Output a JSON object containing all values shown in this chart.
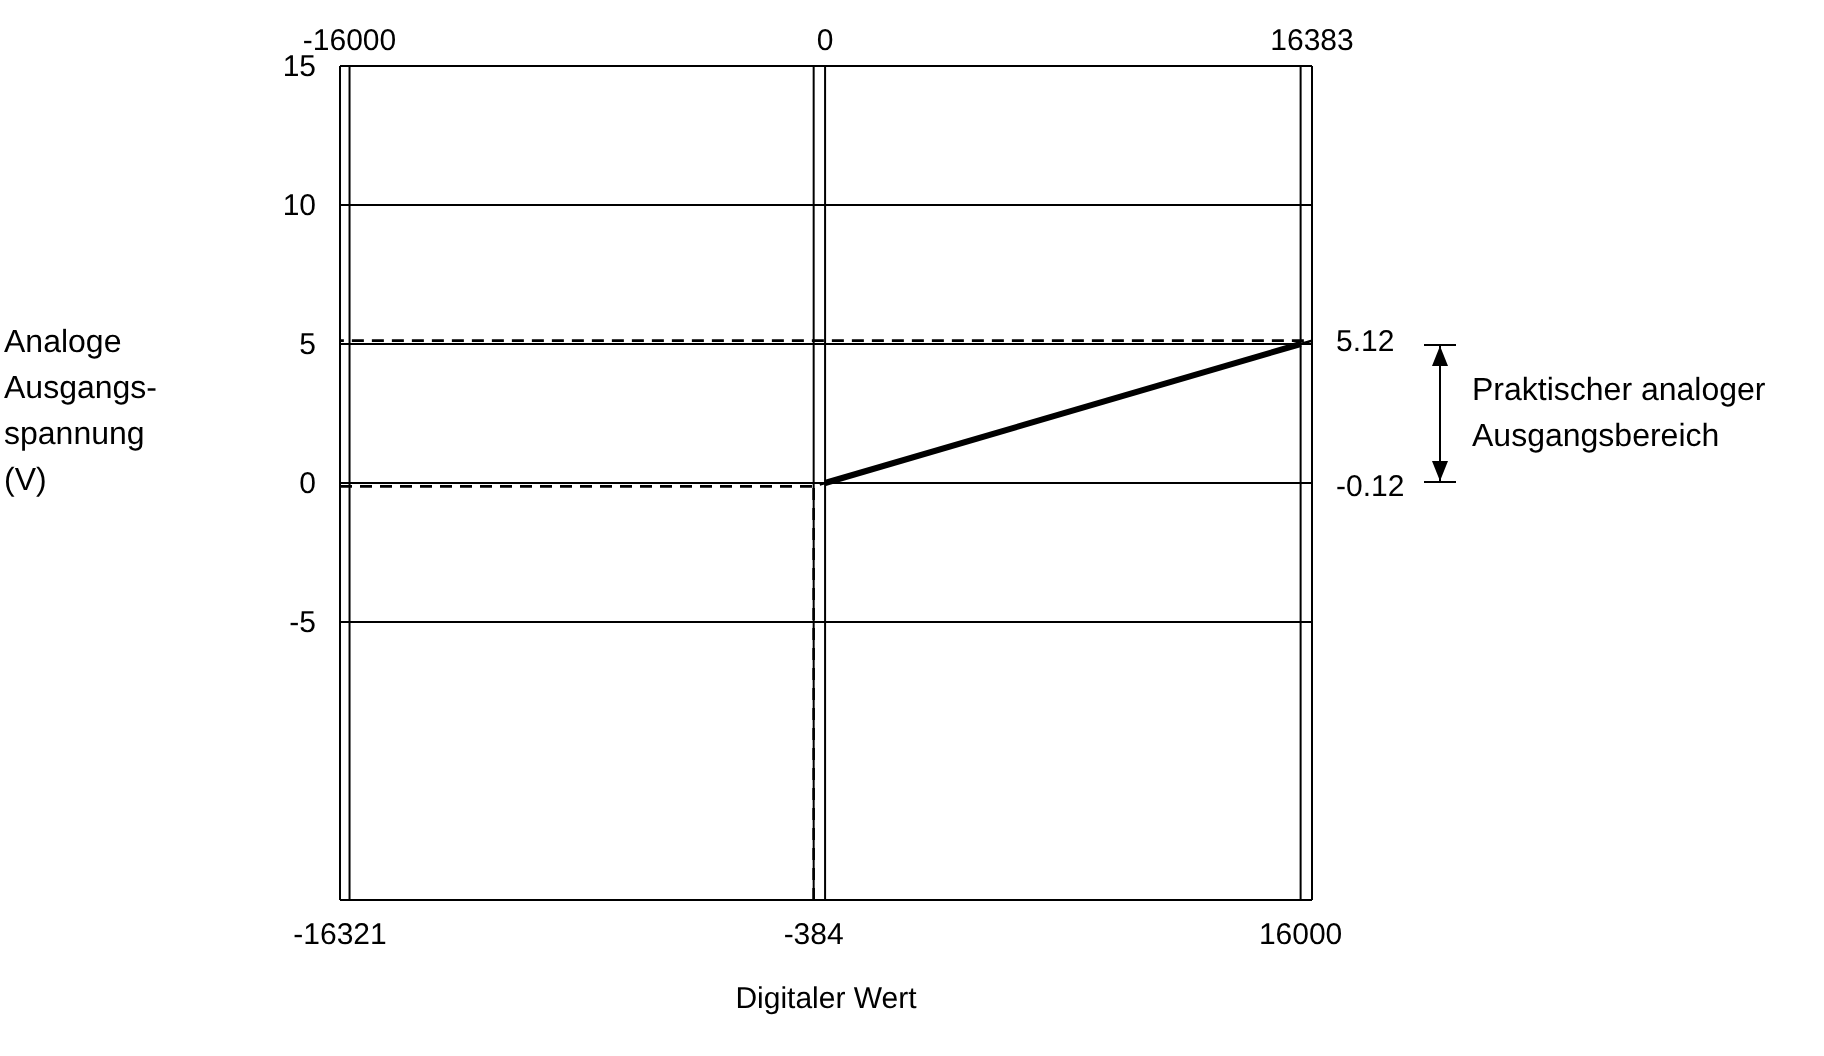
{
  "chart_data": {
    "type": "line",
    "xlabel": "Digitaler Wert",
    "ylabel": "Analoge Ausgangs-spannung (V)",
    "xlim": [
      -16321,
      16383
    ],
    "xticks": [
      -16321,
      -384,
      16000
    ],
    "x2lim": [
      -16321,
      16383
    ],
    "x2ticks": [
      -16000,
      0,
      16383
    ],
    "ylim": [
      -15,
      15
    ],
    "yticks": [
      -5,
      0,
      5,
      10,
      15
    ],
    "y2lim": [
      -15,
      15
    ],
    "y2ticks": [
      -0.12,
      5.12
    ],
    "grid": true,
    "marker": "none",
    "annotations": [
      "Praktischer analoger Ausgangsbereich"
    ],
    "series": [
      {
        "color": "#000000",
        "line_style": "solid",
        "x": [
          0,
          16000
        ],
        "values": [
          0,
          5
        ]
      },
      {
        "color": "#000000",
        "line_style": "dashed",
        "x": [
          -16321,
          -384,
          0
        ],
        "values": [
          -0.12,
          -0.12,
          0
        ]
      },
      {
        "color": "#000000",
        "line_style": "dashed",
        "x": [
          -384,
          -384
        ],
        "values": [
          -15,
          -0.12
        ]
      },
      {
        "color": "#000000",
        "line_style": "dashed",
        "x": [
          16000,
          16383,
          -16321
        ],
        "values": [
          5,
          5.12,
          5.12
        ]
      }
    ]
  }
}
